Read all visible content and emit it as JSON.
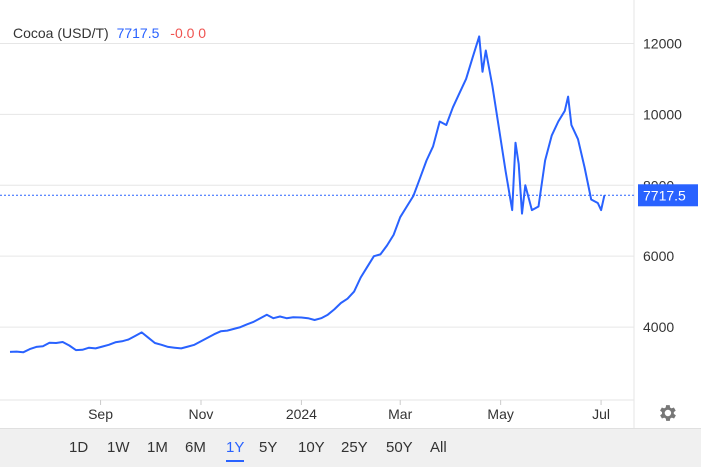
{
  "header": {
    "symbol": "Cocoa (USD/T)",
    "price": "7717.5",
    "change": "-0.0 0"
  },
  "colors": {
    "line": "#2962ff",
    "grid": "#e6e6e6",
    "change_negative": "#ef5350",
    "active_range": "#2962ff"
  },
  "price_tag": "7717.5",
  "settings_icon": "gear-icon",
  "ranges": [
    {
      "label": "1D",
      "active": false
    },
    {
      "label": "1W",
      "active": false
    },
    {
      "label": "1M",
      "active": false
    },
    {
      "label": "6M",
      "active": false
    },
    {
      "label": "1Y",
      "active": true
    },
    {
      "label": "5Y",
      "active": false
    },
    {
      "label": "10Y",
      "active": false
    },
    {
      "label": "25Y",
      "active": false
    },
    {
      "label": "50Y",
      "active": false
    },
    {
      "label": "All",
      "active": false
    }
  ],
  "chart_data": {
    "type": "line",
    "title": "",
    "xlabel": "",
    "ylabel": "",
    "grid": true,
    "y_axis_side": "right",
    "ylim": [
      2000,
      13000
    ],
    "y_ticks": [
      4000,
      6000,
      8000,
      10000,
      12000
    ],
    "x_ticks": [
      {
        "label": "Sep",
        "date": "2023-09-01"
      },
      {
        "label": "Nov",
        "date": "2023-11-01"
      },
      {
        "label": "2024",
        "date": "2024-01-01"
      },
      {
        "label": "Mar",
        "date": "2024-03-01"
      },
      {
        "label": "May",
        "date": "2024-05-01"
      },
      {
        "label": "Jul",
        "date": "2024-07-01"
      }
    ],
    "xlim": [
      "2023-07-08",
      "2024-07-21"
    ],
    "last_value": 7717.5,
    "series": [
      {
        "points": [
          [
            "2023-07-08",
            3300
          ],
          [
            "2023-07-12",
            3310
          ],
          [
            "2023-07-16",
            3290
          ],
          [
            "2023-07-20",
            3380
          ],
          [
            "2023-07-24",
            3440
          ],
          [
            "2023-07-28",
            3460
          ],
          [
            "2023-08-01",
            3560
          ],
          [
            "2023-08-05",
            3550
          ],
          [
            "2023-08-09",
            3580
          ],
          [
            "2023-08-13",
            3480
          ],
          [
            "2023-08-17",
            3350
          ],
          [
            "2023-08-21",
            3360
          ],
          [
            "2023-08-25",
            3420
          ],
          [
            "2023-08-29",
            3400
          ],
          [
            "2023-09-02",
            3450
          ],
          [
            "2023-09-06",
            3500
          ],
          [
            "2023-09-10",
            3570
          ],
          [
            "2023-09-14",
            3600
          ],
          [
            "2023-09-18",
            3650
          ],
          [
            "2023-09-22",
            3750
          ],
          [
            "2023-09-26",
            3850
          ],
          [
            "2023-09-30",
            3700
          ],
          [
            "2023-10-04",
            3550
          ],
          [
            "2023-10-08",
            3500
          ],
          [
            "2023-10-12",
            3440
          ],
          [
            "2023-10-16",
            3420
          ],
          [
            "2023-10-20",
            3400
          ],
          [
            "2023-10-24",
            3450
          ],
          [
            "2023-10-28",
            3500
          ],
          [
            "2023-11-01",
            3600
          ],
          [
            "2023-11-05",
            3700
          ],
          [
            "2023-11-09",
            3800
          ],
          [
            "2023-11-13",
            3880
          ],
          [
            "2023-11-17",
            3900
          ],
          [
            "2023-11-21",
            3950
          ],
          [
            "2023-11-25",
            4000
          ],
          [
            "2023-11-29",
            4080
          ],
          [
            "2023-12-03",
            4150
          ],
          [
            "2023-12-07",
            4250
          ],
          [
            "2023-12-11",
            4350
          ],
          [
            "2023-12-15",
            4250
          ],
          [
            "2023-12-19",
            4300
          ],
          [
            "2023-12-23",
            4250
          ],
          [
            "2023-12-27",
            4280
          ],
          [
            "2024-01-01",
            4270
          ],
          [
            "2024-01-05",
            4250
          ],
          [
            "2024-01-09",
            4200
          ],
          [
            "2024-01-13",
            4250
          ],
          [
            "2024-01-17",
            4350
          ],
          [
            "2024-01-21",
            4500
          ],
          [
            "2024-01-25",
            4680
          ],
          [
            "2024-01-29",
            4800
          ],
          [
            "2024-02-02",
            5000
          ],
          [
            "2024-02-06",
            5400
          ],
          [
            "2024-02-10",
            5700
          ],
          [
            "2024-02-14",
            6000
          ],
          [
            "2024-02-18",
            6050
          ],
          [
            "2024-02-22",
            6300
          ],
          [
            "2024-02-26",
            6600
          ],
          [
            "2024-03-01",
            7100
          ],
          [
            "2024-03-05",
            7400
          ],
          [
            "2024-03-09",
            7700
          ],
          [
            "2024-03-13",
            8200
          ],
          [
            "2024-03-17",
            8700
          ],
          [
            "2024-03-21",
            9100
          ],
          [
            "2024-03-25",
            9800
          ],
          [
            "2024-03-29",
            9700
          ],
          [
            "2024-04-02",
            10200
          ],
          [
            "2024-04-06",
            10600
          ],
          [
            "2024-04-10",
            11000
          ],
          [
            "2024-04-14",
            11600
          ],
          [
            "2024-04-18",
            12200
          ],
          [
            "2024-04-20",
            11200
          ],
          [
            "2024-04-22",
            11800
          ],
          [
            "2024-04-26",
            10800
          ],
          [
            "2024-04-30",
            9600
          ],
          [
            "2024-05-04",
            8400
          ],
          [
            "2024-05-08",
            7300
          ],
          [
            "2024-05-10",
            9200
          ],
          [
            "2024-05-12",
            8600
          ],
          [
            "2024-05-14",
            7200
          ],
          [
            "2024-05-16",
            8000
          ],
          [
            "2024-05-20",
            7300
          ],
          [
            "2024-05-24",
            7400
          ],
          [
            "2024-05-28",
            8700
          ],
          [
            "2024-06-01",
            9400
          ],
          [
            "2024-06-05",
            9800
          ],
          [
            "2024-06-09",
            10100
          ],
          [
            "2024-06-11",
            10500
          ],
          [
            "2024-06-13",
            9700
          ],
          [
            "2024-06-17",
            9300
          ],
          [
            "2024-06-21",
            8500
          ],
          [
            "2024-06-25",
            7600
          ],
          [
            "2024-06-29",
            7500
          ],
          [
            "2024-07-01",
            7300
          ],
          [
            "2024-07-03",
            7717.5
          ]
        ]
      }
    ]
  }
}
